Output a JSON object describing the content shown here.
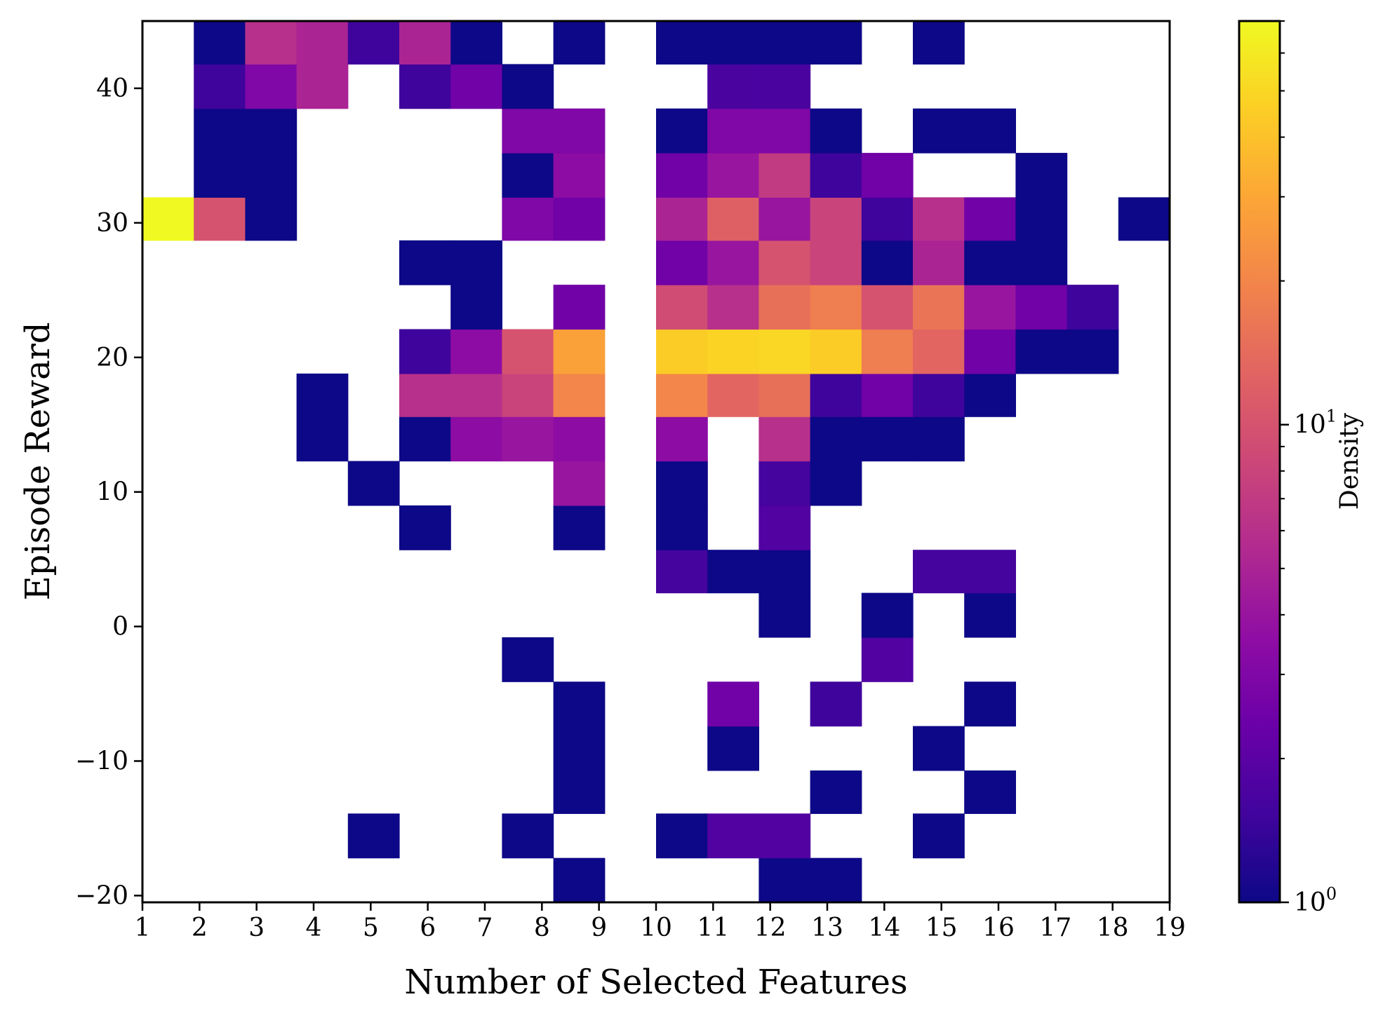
{
  "chart_data": {
    "type": "heatmap",
    "title": "",
    "xlabel": "Number of Selected Features",
    "ylabel": "Episode Reward",
    "colorbar_label": "Density",
    "colormap": "plasma",
    "color_scale": "log",
    "grid": false,
    "xlim": [
      1,
      19
    ],
    "ylim": [
      -20.5,
      45
    ],
    "x_ticks": [
      1,
      2,
      3,
      4,
      5,
      6,
      7,
      8,
      9,
      10,
      11,
      12,
      13,
      14,
      15,
      16,
      17,
      18,
      19
    ],
    "y_ticks": [
      -20,
      -10,
      0,
      10,
      20,
      30,
      40
    ],
    "y_tick_labels": [
      "−20",
      "−10",
      "0",
      "10",
      "20",
      "30",
      "40"
    ],
    "x_bin_edges": [
      1,
      1.9,
      2.8,
      3.7,
      4.6,
      5.5,
      6.4,
      7.3,
      8.2,
      9.1,
      10.0,
      10.9,
      11.8,
      12.7,
      13.6,
      14.5,
      15.4,
      16.3,
      17.2,
      18.1,
      19.0
    ],
    "y_bin_edges": [
      -20.5,
      -17.2,
      -13.9,
      -10.7,
      -7.4,
      -4.1,
      -0.8,
      2.5,
      5.7,
      9.0,
      12.3,
      15.6,
      18.8,
      22.1,
      25.4,
      28.7,
      31.9,
      35.2,
      38.5,
      41.8,
      45.0
    ],
    "counts": [
      [
        0,
        0,
        0,
        0,
        0,
        0,
        0,
        0,
        1,
        0,
        0,
        0,
        1,
        1,
        0,
        0,
        0,
        0,
        0,
        0
      ],
      [
        0,
        0,
        0,
        0,
        1,
        0,
        0,
        1,
        0,
        0,
        1,
        1.8,
        1.8,
        0,
        0,
        1,
        0,
        0,
        0,
        0
      ],
      [
        0,
        0,
        0,
        0,
        0,
        0,
        0,
        0,
        1,
        0,
        0,
        0,
        0,
        1,
        0,
        0,
        1,
        0,
        0,
        0
      ],
      [
        0,
        0,
        0,
        0,
        0,
        0,
        0,
        0,
        1,
        0,
        0,
        1,
        0,
        0,
        0,
        1,
        0,
        0,
        0,
        0
      ],
      [
        0,
        0,
        0,
        0,
        0,
        0,
        0,
        0,
        1,
        0,
        0,
        2.5,
        0,
        1.5,
        0,
        0,
        1,
        0,
        0,
        0
      ],
      [
        0,
        0,
        0,
        0,
        0,
        0,
        0,
        1,
        0,
        0,
        0,
        0,
        0,
        0,
        1.8,
        0,
        0,
        0,
        0,
        0
      ],
      [
        0,
        0,
        0,
        0,
        0,
        0,
        0,
        0,
        0,
        0,
        0,
        0,
        1,
        0,
        1,
        0,
        1,
        0,
        0,
        0
      ],
      [
        0,
        0,
        0,
        0,
        0,
        0,
        0,
        0,
        0,
        0,
        1.6,
        1,
        1,
        0,
        0,
        1.6,
        1.6,
        0,
        0,
        0
      ],
      [
        0,
        0,
        0,
        0,
        0,
        1,
        0,
        0,
        1,
        0,
        1,
        0,
        1.8,
        0,
        0,
        0,
        0,
        0,
        0,
        0
      ],
      [
        0,
        0,
        0,
        0,
        1,
        0,
        0,
        0,
        4,
        0,
        1,
        0,
        1.6,
        1,
        0,
        0,
        0,
        0,
        0,
        0
      ],
      [
        0,
        0,
        0,
        1,
        0,
        1,
        3.5,
        4,
        3.5,
        0,
        3.5,
        0,
        6,
        1,
        1,
        1,
        0,
        0,
        0,
        0
      ],
      [
        0,
        0,
        0,
        1,
        0,
        6,
        6,
        8,
        20,
        0,
        20,
        13,
        15,
        1.5,
        2.5,
        1.5,
        1,
        0,
        0,
        0
      ],
      [
        0,
        0,
        0,
        0,
        0,
        1.5,
        3.5,
        10,
        28,
        0,
        45,
        48,
        50,
        45,
        18,
        13,
        2.5,
        1,
        1,
        0
      ],
      [
        0,
        0,
        0,
        0,
        0,
        0,
        1,
        0,
        2.5,
        0,
        9,
        6,
        15,
        18,
        10,
        16,
        4,
        2.5,
        1.5,
        0
      ],
      [
        0,
        0,
        0,
        0,
        0,
        1,
        1,
        0,
        0,
        0,
        2.5,
        4,
        10,
        8,
        1,
        5,
        1,
        1,
        0,
        0
      ],
      [
        70,
        10,
        1,
        0,
        0,
        0,
        0,
        3,
        2.5,
        0,
        5,
        12,
        4,
        8,
        1.5,
        6,
        2.5,
        1,
        0,
        1
      ],
      [
        0,
        1,
        1,
        0,
        0,
        0,
        0,
        1,
        3.5,
        0,
        2.5,
        4,
        7,
        1.5,
        2.5,
        0,
        0,
        1,
        0,
        0
      ],
      [
        0,
        1,
        1,
        0,
        0,
        0,
        0,
        3,
        3,
        0,
        1,
        3,
        3,
        1,
        0,
        1,
        1,
        0,
        0,
        0
      ],
      [
        0,
        1.5,
        3,
        5,
        0,
        1.5,
        2.5,
        1,
        0,
        0,
        0,
        1.7,
        1.7,
        0,
        0,
        0,
        0,
        0,
        0,
        0
      ],
      [
        0,
        1,
        6,
        5,
        1.5,
        5,
        1,
        0,
        1,
        0,
        1,
        1,
        1,
        1,
        0,
        1,
        0,
        0,
        0,
        0
      ]
    ],
    "colorbar": {
      "min": 1,
      "max": 70,
      "major_ticks": [
        1,
        10
      ],
      "major_tick_labels": [
        {
          "base": "10",
          "exp": "0"
        },
        {
          "base": "10",
          "exp": "1"
        }
      ]
    }
  }
}
